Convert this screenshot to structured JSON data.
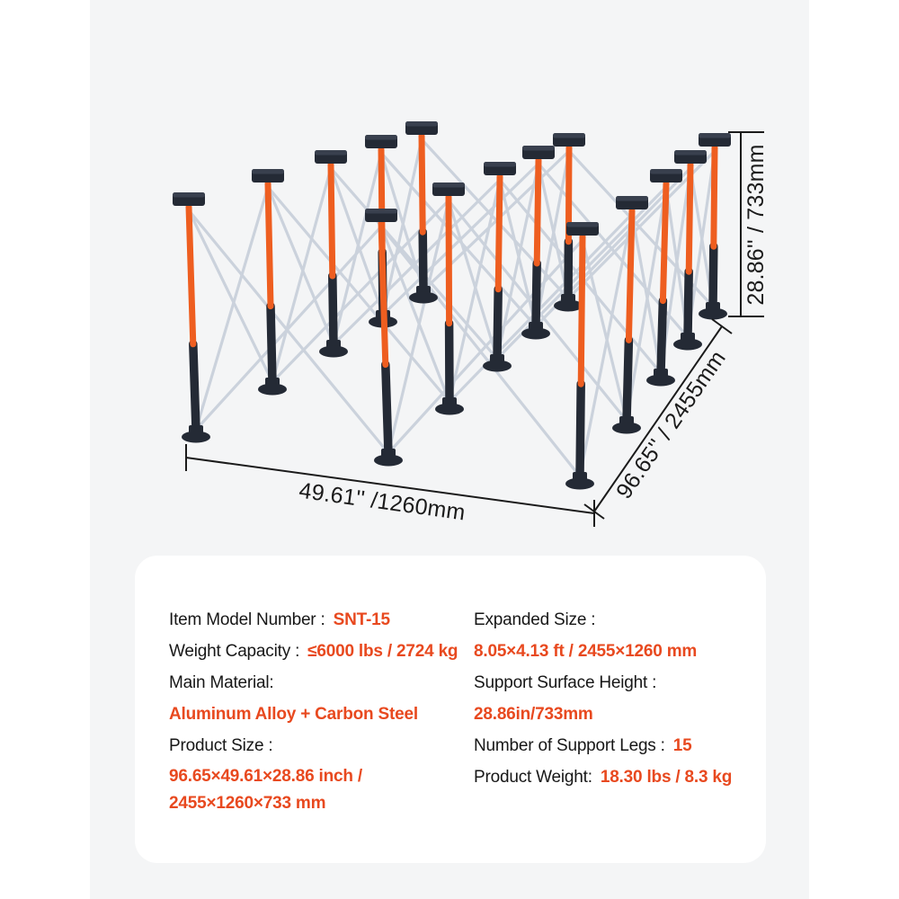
{
  "product_diagram": {
    "description": "15-leg folding centipede work support sawhorse, isometric line illustration",
    "support_legs_count": 15,
    "dimensions": {
      "width_label": "49.61'' /1260mm",
      "depth_label": "96.65'' / 2455mm",
      "height_label": "28.86'' / 733mm"
    },
    "colors": {
      "photo_background": "#f4f5f6",
      "leg_orange": "#ee5e20",
      "leg_dark": "#242a35",
      "brace_gray": "#cbd2dc",
      "dimension_line": "#1b1b1b"
    }
  },
  "specs_panel": {
    "background": "#ffffff",
    "accent": "#e8491f",
    "text_color": "#171717",
    "left": [
      {
        "label": "Item Model Number :",
        "value": "SNT-15"
      },
      {
        "label": "Weight Capacity :",
        "value": "≤6000 lbs / 2724 kg"
      },
      {
        "label": "Main Material:",
        "value": "Aluminum Alloy + Carbon Steel"
      },
      {
        "label": "Product Size :",
        "value": "96.65×49.61×28.86 inch / 2455×1260×733 mm"
      }
    ],
    "right": [
      {
        "label": "Expanded Size :",
        "value": "8.05×4.13 ft / 2455×1260 mm"
      },
      {
        "label": "Support Surface Height :",
        "value": "28.86in/733mm"
      },
      {
        "label": "Number of Support Legs :",
        "value": "15"
      },
      {
        "label": "Product Weight:",
        "value": "18.30 lbs / 8.3 kg"
      }
    ]
  }
}
